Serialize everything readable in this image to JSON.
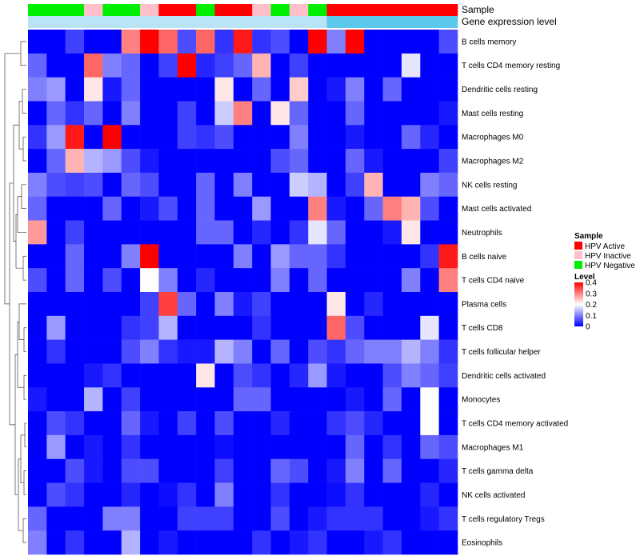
{
  "chart_data": {
    "type": "heatmap",
    "title": "",
    "annotation_rows": {
      "sample_label": "Sample",
      "gene_expression_label": "Gene expression level"
    },
    "samples": [
      "HPV Negative",
      "HPV Negative",
      "HPV Negative",
      "HPV Inactive",
      "HPV Negative",
      "HPV Negative",
      "HPV Inactive",
      "HPV Active",
      "HPV Active",
      "HPV Negative",
      "HPV Active",
      "HPV Active",
      "HPV Inactive",
      "HPV Negative",
      "HPV Inactive",
      "HPV Negative",
      "HPV Active",
      "HPV Active",
      "HPV Active",
      "HPV Active",
      "HPV Active",
      "HPV Active",
      "HPV Active"
    ],
    "gene_expression_colors": [
      "#b8e4f5",
      "#b8e4f5",
      "#b8e4f5",
      "#b8e4f5",
      "#b8e4f5",
      "#b8e4f5",
      "#b8e4f5",
      "#b8e4f5",
      "#b8e4f5",
      "#b8e4f5",
      "#b8e4f5",
      "#b8e4f5",
      "#b8e4f5",
      "#b8e4f5",
      "#b8e4f5",
      "#b8e4f5",
      "#5bc8ec",
      "#5bc8ec",
      "#5bc8ec",
      "#5bc8ec",
      "#5bc8ec",
      "#5bc8ec",
      "#5bc8ec"
    ],
    "rows": [
      "B cells memory",
      "T cells CD4 memory resting",
      "Dendritic cells resting",
      "Mast cells resting",
      "Macrophages M0",
      "Macrophages M2",
      "NK cells resting",
      "Mast cells activated",
      "Neutrophils",
      "B cells naive",
      "T cells CD4 naive",
      "Plasma cells",
      "T cells CD8",
      "T cells follicular helper",
      "Dendritic cells activated",
      "Monocytes",
      "T cells CD4 memory activated",
      "Macrophages M1",
      "T cells gamma delta",
      "NK cells activated",
      "T cells regulatory  Tregs",
      "Eosinophils"
    ],
    "values": [
      [
        0,
        0,
        0.05,
        0,
        0,
        0.3,
        0.4,
        0.32,
        0.06,
        0.32,
        0.04,
        0.38,
        0.04,
        0.06,
        0,
        0.4,
        0.1,
        0.4,
        0,
        0,
        0,
        0,
        0.06
      ],
      [
        0.08,
        0,
        0,
        0.32,
        0.1,
        0.08,
        0,
        0.05,
        0.4,
        0.03,
        0.05,
        0.08,
        0.26,
        0,
        0.05,
        0,
        0,
        0,
        0,
        0,
        0.18,
        0,
        0
      ],
      [
        0.1,
        0.12,
        0,
        0.22,
        0.02,
        0.08,
        0,
        0,
        0,
        0,
        0.22,
        0,
        0.08,
        0,
        0.24,
        0,
        0.02,
        0.1,
        0,
        0.08,
        0,
        0,
        0
      ],
      [
        0,
        0.08,
        0.04,
        0.08,
        0,
        0.1,
        0,
        0,
        0.05,
        0,
        0.16,
        0.3,
        0,
        0.22,
        0.08,
        0,
        0,
        0.08,
        0,
        0,
        0,
        0,
        0.02
      ],
      [
        0.04,
        0.12,
        0.38,
        0,
        0.4,
        0,
        0,
        0,
        0.05,
        0.04,
        0.06,
        0,
        0,
        0,
        0.1,
        0,
        0,
        0.02,
        0,
        0,
        0.08,
        0.03,
        0
      ],
      [
        0,
        0.08,
        0.26,
        0.14,
        0.12,
        0.06,
        0.02,
        0,
        0,
        0,
        0,
        0,
        0,
        0.06,
        0.08,
        0,
        0,
        0.08,
        0.02,
        0,
        0,
        0,
        0.05
      ],
      [
        0.1,
        0.06,
        0.05,
        0.06,
        0,
        0.08,
        0.06,
        0,
        0,
        0.08,
        0,
        0.1,
        0,
        0,
        0.16,
        0.14,
        0,
        0.05,
        0.26,
        0,
        0,
        0.1,
        0.08
      ],
      [
        0.08,
        0,
        0,
        0,
        0.08,
        0,
        0.02,
        0.06,
        0,
        0.08,
        0,
        0,
        0.12,
        0,
        0,
        0.3,
        0.02,
        0,
        0.08,
        0.3,
        0.26,
        0.06,
        0
      ],
      [
        0.28,
        0,
        0.05,
        0,
        0,
        0,
        0,
        0,
        0,
        0.08,
        0.08,
        0,
        0.03,
        0,
        0.04,
        0.18,
        0.08,
        0,
        0,
        0.02,
        0.22,
        0,
        0
      ],
      [
        0,
        0,
        0.08,
        0,
        0,
        0.1,
        0.4,
        0,
        0,
        0,
        0,
        0.1,
        0,
        0.12,
        0.08,
        0.08,
        0.04,
        0,
        0,
        0,
        0,
        0.04,
        0.38
      ],
      [
        0.06,
        0,
        0.08,
        0,
        0.06,
        0,
        0.2,
        0.1,
        0,
        0.03,
        0,
        0,
        0,
        0.1,
        0,
        0.08,
        0,
        0,
        0,
        0,
        0.1,
        0,
        0.3
      ],
      [
        0,
        0,
        0,
        0,
        0,
        0,
        0.05,
        0.35,
        0.08,
        0,
        0.1,
        0.02,
        0.05,
        0,
        0,
        0,
        0.22,
        0,
        0.03,
        0,
        0,
        0,
        0
      ],
      [
        0,
        0.12,
        0,
        0,
        0,
        0.04,
        0.05,
        0.14,
        0,
        0,
        0,
        0,
        0.04,
        0,
        0,
        0,
        0.32,
        0.06,
        0,
        0,
        0,
        0.18,
        0
      ],
      [
        0,
        0.04,
        0,
        0,
        0,
        0.06,
        0.1,
        0.04,
        0.02,
        0.02,
        0.14,
        0.1,
        0,
        0.08,
        0,
        0.06,
        0.04,
        0.08,
        0.1,
        0.1,
        0.14,
        0.1,
        0.04
      ],
      [
        0,
        0,
        0,
        0.02,
        0.04,
        0,
        0,
        0,
        0,
        0.22,
        0,
        0.06,
        0.04,
        0,
        0.03,
        0.12,
        0.02,
        0,
        0,
        0.06,
        0.1,
        0.08,
        0.05
      ],
      [
        0.02,
        0,
        0,
        0.14,
        0,
        0.05,
        0,
        0,
        0,
        0,
        0,
        0.08,
        0.08,
        0,
        0,
        0,
        0,
        0.02,
        0,
        0.08,
        0,
        0.2,
        0
      ],
      [
        0,
        0.06,
        0.04,
        0,
        0,
        0.08,
        0.02,
        0,
        0.05,
        0,
        0.06,
        0,
        0,
        0.03,
        0,
        0,
        0.04,
        0.06,
        0.03,
        0,
        0,
        0.2,
        0
      ],
      [
        0,
        0.12,
        0,
        0.02,
        0,
        0.04,
        0,
        0,
        0,
        0,
        0.01,
        0,
        0,
        0,
        0,
        0,
        0,
        0.08,
        0,
        0.04,
        0,
        0.08,
        0.06
      ],
      [
        0,
        0,
        0.06,
        0.02,
        0,
        0.06,
        0.06,
        0,
        0,
        0,
        0.05,
        0,
        0,
        0.08,
        0.06,
        0,
        0.02,
        0.1,
        0,
        0.08,
        0,
        0,
        0.03
      ],
      [
        0,
        0.06,
        0.04,
        0,
        0,
        0.03,
        0,
        0.01,
        0.04,
        0,
        0.1,
        0,
        0,
        0.04,
        0,
        0,
        0.01,
        0.04,
        0,
        0,
        0,
        0.03,
        0
      ],
      [
        0.08,
        0,
        0,
        0,
        0.1,
        0.1,
        0,
        0,
        0.05,
        0.05,
        0.05,
        0,
        0,
        0.06,
        0,
        0.02,
        0.04,
        0.04,
        0.04,
        0,
        0,
        0.02,
        0.04
      ],
      [
        0.1,
        0,
        0.04,
        0,
        0,
        0.14,
        0,
        0.02,
        0,
        0,
        0,
        0,
        0.04,
        0,
        0.02,
        0.04,
        0,
        0,
        0.02,
        0.04,
        0,
        0,
        0
      ]
    ],
    "color_scale": {
      "min": 0,
      "mid": 0.2,
      "max": 0.4,
      "low": "#0000ff",
      "mid_color": "#ffffff",
      "high": "#ff0000"
    },
    "legend_sample": {
      "title": "Sample",
      "items": [
        {
          "label": "HPV Active",
          "color": "#ff0000"
        },
        {
          "label": "HPV Inactive",
          "color": "#ffc0cb"
        },
        {
          "label": "HPV Negative",
          "color": "#00ee00"
        }
      ]
    },
    "legend_level": {
      "title": "Level",
      "ticks": [
        "0.4",
        "0.3",
        "0.2",
        "0.1",
        "0"
      ],
      "tick_values": [
        0.4,
        0.3,
        0.2,
        0.1,
        0
      ]
    }
  }
}
